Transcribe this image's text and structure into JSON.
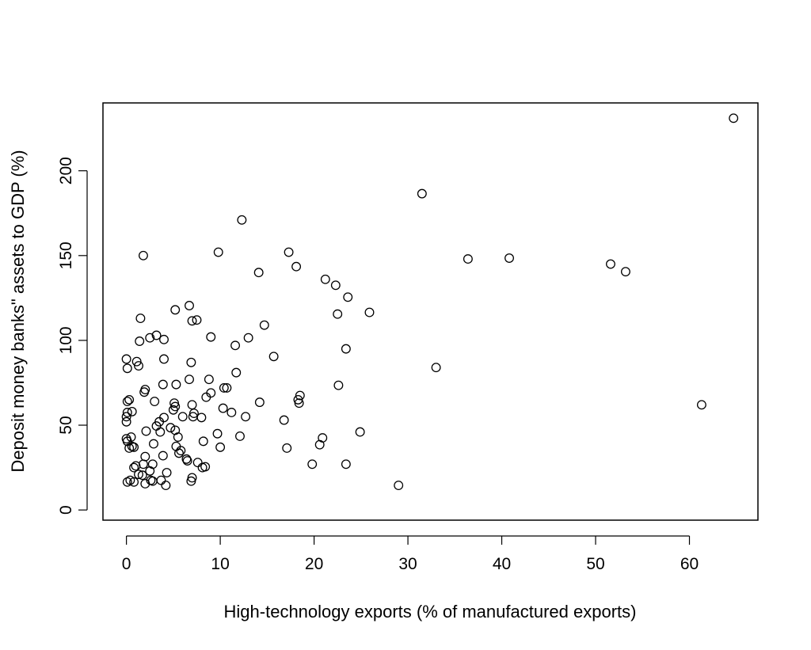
{
  "chart_data": {
    "type": "scatter",
    "title": "",
    "xlabel": "High-technology exports (% of manufactured exports)",
    "ylabel": "Deposit money banks\" assets to GDP (%)",
    "xlim": [
      -2.5,
      67.3
    ],
    "ylim": [
      -6,
      240
    ],
    "xticks": [
      0,
      10,
      20,
      30,
      40,
      50,
      60
    ],
    "yticks": [
      0,
      50,
      100,
      150,
      200
    ],
    "grid": false,
    "legend": "none",
    "marker": "open-circle",
    "color": "#000000",
    "points": [
      [
        0.0,
        89.0
      ],
      [
        0.1,
        83.5
      ],
      [
        0.1,
        64.0
      ],
      [
        0.3,
        65.0
      ],
      [
        0.1,
        57.5
      ],
      [
        0.6,
        58.0
      ],
      [
        0.0,
        55.0
      ],
      [
        0.0,
        52.0
      ],
      [
        0.0,
        42.0
      ],
      [
        0.1,
        40.5
      ],
      [
        0.5,
        43.0
      ],
      [
        0.3,
        36.5
      ],
      [
        0.6,
        37.5
      ],
      [
        0.8,
        37.0
      ],
      [
        0.1,
        16.5
      ],
      [
        0.4,
        17.5
      ],
      [
        0.8,
        16.5
      ],
      [
        0.8,
        25.0
      ],
      [
        1.0,
        26.0
      ],
      [
        1.1,
        87.5
      ],
      [
        1.3,
        85.0
      ],
      [
        1.4,
        99.5
      ],
      [
        1.5,
        113.0
      ],
      [
        1.8,
        150.0
      ],
      [
        1.3,
        21.0
      ],
      [
        1.7,
        20.5
      ],
      [
        1.8,
        27.0
      ],
      [
        2.0,
        15.5
      ],
      [
        2.0,
        31.5
      ],
      [
        1.9,
        69.5
      ],
      [
        2.0,
        71.0
      ],
      [
        2.1,
        46.5
      ],
      [
        2.5,
        101.5
      ],
      [
        2.5,
        23.0
      ],
      [
        2.6,
        17.5
      ],
      [
        2.8,
        17.0
      ],
      [
        2.8,
        27.0
      ],
      [
        2.9,
        39.0
      ],
      [
        3.0,
        64.0
      ],
      [
        3.2,
        103.0
      ],
      [
        3.2,
        49.5
      ],
      [
        3.5,
        52.0
      ],
      [
        3.6,
        46.0
      ],
      [
        3.7,
        17.5
      ],
      [
        3.9,
        74.0
      ],
      [
        3.9,
        32.0
      ],
      [
        4.0,
        89.0
      ],
      [
        4.0,
        54.5
      ],
      [
        4.0,
        100.5
      ],
      [
        4.2,
        14.5
      ],
      [
        4.3,
        22.0
      ],
      [
        4.7,
        48.5
      ],
      [
        5.0,
        59.0
      ],
      [
        5.1,
        63.0
      ],
      [
        5.2,
        61.0
      ],
      [
        5.2,
        47.0
      ],
      [
        5.2,
        118.0
      ],
      [
        5.3,
        74.0
      ],
      [
        5.3,
        37.5
      ],
      [
        5.5,
        43.0
      ],
      [
        5.6,
        33.5
      ],
      [
        5.8,
        35.0
      ],
      [
        6.0,
        55.0
      ],
      [
        6.4,
        30.0
      ],
      [
        6.5,
        29.0
      ],
      [
        6.7,
        77.0
      ],
      [
        6.7,
        120.5
      ],
      [
        6.9,
        87.0
      ],
      [
        6.9,
        17.0
      ],
      [
        7.0,
        19.0
      ],
      [
        7.0,
        111.5
      ],
      [
        7.0,
        62.0
      ],
      [
        7.1,
        55.0
      ],
      [
        7.2,
        57.0
      ],
      [
        7.5,
        112.0
      ],
      [
        7.6,
        28.0
      ],
      [
        8.0,
        54.5
      ],
      [
        8.1,
        25.0
      ],
      [
        8.2,
        40.5
      ],
      [
        8.4,
        25.5
      ],
      [
        8.5,
        66.5
      ],
      [
        8.8,
        77.0
      ],
      [
        9.0,
        69.0
      ],
      [
        9.0,
        102.0
      ],
      [
        9.7,
        45.0
      ],
      [
        9.8,
        152.0
      ],
      [
        10.0,
        37.0
      ],
      [
        10.3,
        60.0
      ],
      [
        10.4,
        72.0
      ],
      [
        10.7,
        72.0
      ],
      [
        11.2,
        57.5
      ],
      [
        11.6,
        97.0
      ],
      [
        11.7,
        81.0
      ],
      [
        12.1,
        43.5
      ],
      [
        12.3,
        171.0
      ],
      [
        12.7,
        55.0
      ],
      [
        13.0,
        101.5
      ],
      [
        14.1,
        140.0
      ],
      [
        14.2,
        63.5
      ],
      [
        14.7,
        109.0
      ],
      [
        15.7,
        90.5
      ],
      [
        16.8,
        53.0
      ],
      [
        17.1,
        36.5
      ],
      [
        17.3,
        152.0
      ],
      [
        18.1,
        143.5
      ],
      [
        18.3,
        65.0
      ],
      [
        18.4,
        63.0
      ],
      [
        18.5,
        67.5
      ],
      [
        19.8,
        27.0
      ],
      [
        20.6,
        38.5
      ],
      [
        20.9,
        42.5
      ],
      [
        21.2,
        136.0
      ],
      [
        22.3,
        132.5
      ],
      [
        22.5,
        115.5
      ],
      [
        22.6,
        73.5
      ],
      [
        23.4,
        27.0
      ],
      [
        23.4,
        95.0
      ],
      [
        23.6,
        125.5
      ],
      [
        24.9,
        46.0
      ],
      [
        25.9,
        116.5
      ],
      [
        29.0,
        14.5
      ],
      [
        31.5,
        186.5
      ],
      [
        33.0,
        84.0
      ],
      [
        36.4,
        148.0
      ],
      [
        40.8,
        148.5
      ],
      [
        51.6,
        145.0
      ],
      [
        53.2,
        140.5
      ],
      [
        61.3,
        62.0
      ],
      [
        64.7,
        231.0
      ]
    ]
  }
}
